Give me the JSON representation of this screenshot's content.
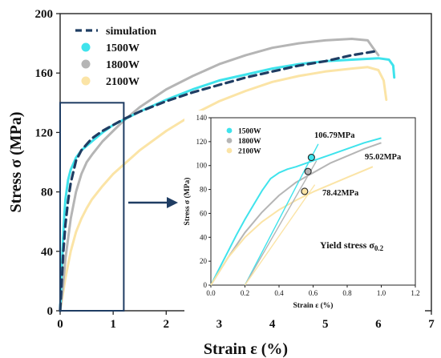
{
  "chart_data": [
    {
      "type": "line",
      "title": "",
      "xlabel": "Strain ε (%)",
      "ylabel": "Stress σ (MPa)",
      "xlim": [
        0,
        7
      ],
      "ylim": [
        0,
        200
      ],
      "xticks": [
        0,
        1,
        2,
        3,
        4,
        5,
        6,
        7
      ],
      "yticks": [
        0,
        40,
        80,
        120,
        160,
        200
      ],
      "grid": false,
      "legend_position": "top-left",
      "series": [
        {
          "name": "simulation",
          "color": "#1f3d63",
          "style": "dashed",
          "x": [
            0,
            0.03,
            0.06,
            0.1,
            0.15,
            0.2,
            0.3,
            0.4,
            0.5,
            0.6,
            0.8,
            1.0,
            1.2,
            1.5,
            2.0,
            2.5,
            3.0,
            3.5,
            4.0,
            4.5,
            5.0,
            5.5,
            6.0
          ],
          "y": [
            0,
            20,
            40,
            58,
            74,
            86,
            101,
            108,
            112,
            116,
            121,
            125,
            129,
            134,
            141,
            147,
            152,
            157,
            161,
            165,
            168,
            172,
            175
          ]
        },
        {
          "name": "1500W",
          "color": "#3fe3ec",
          "style": "solid",
          "x": [
            0,
            0.02,
            0.05,
            0.08,
            0.1,
            0.15,
            0.2,
            0.3,
            0.4,
            0.5,
            0.6,
            0.8,
            1.0,
            1.5,
            2.0,
            2.5,
            3.0,
            3.5,
            4.0,
            4.5,
            5.0,
            5.5,
            6.0,
            6.2,
            6.28,
            6.3
          ],
          "y": [
            0,
            20,
            45,
            65,
            75,
            88,
            95,
            103,
            108,
            111,
            114,
            120,
            125,
            134,
            142,
            149,
            155,
            159,
            163,
            166,
            168,
            169,
            170,
            169,
            165,
            157
          ]
        },
        {
          "name": "1800W",
          "color": "#b5b5b5",
          "style": "solid",
          "x": [
            0,
            0.05,
            0.1,
            0.2,
            0.3,
            0.4,
            0.5,
            0.6,
            0.8,
            1.0,
            1.2,
            1.5,
            2.0,
            2.5,
            3.0,
            3.5,
            4.0,
            4.5,
            5.0,
            5.5,
            5.8,
            5.9,
            6.0
          ],
          "y": [
            0,
            15,
            35,
            62,
            80,
            92,
            100,
            105,
            114,
            121,
            128,
            137,
            149,
            158,
            166,
            172,
            177,
            180,
            182,
            183,
            182,
            177,
            172
          ]
        },
        {
          "name": "2100W",
          "color": "#fbe4a6",
          "style": "solid",
          "x": [
            0,
            0.1,
            0.2,
            0.3,
            0.4,
            0.5,
            0.6,
            0.8,
            1.0,
            1.5,
            2.0,
            2.5,
            3.0,
            3.5,
            4.0,
            4.5,
            5.0,
            5.5,
            5.8,
            6.0,
            6.1,
            6.15
          ],
          "y": [
            0,
            22,
            40,
            53,
            62,
            69,
            75,
            84,
            92,
            108,
            121,
            132,
            141,
            148,
            154,
            158,
            161,
            163,
            164,
            162,
            155,
            142
          ]
        }
      ]
    },
    {
      "type": "line",
      "title": "Yield stress σ0.2",
      "xlabel": "Strain ε (%)",
      "ylabel": "Stress σ (MPa)",
      "xlim": [
        0,
        1.2
      ],
      "ylim": [
        0,
        140
      ],
      "xticks": [
        0.0,
        0.2,
        0.4,
        0.6,
        0.8,
        1.0,
        1.2
      ],
      "yticks": [
        0,
        20,
        40,
        60,
        80,
        100,
        120,
        140
      ],
      "grid": false,
      "legend_position": "top-left",
      "series": [
        {
          "name": "1500W",
          "color": "#3fe3ec",
          "x": [
            0,
            0.05,
            0.1,
            0.15,
            0.2,
            0.25,
            0.3,
            0.35,
            0.4,
            0.45,
            0.5,
            0.6,
            0.7,
            0.8,
            0.9,
            1.0
          ],
          "y": [
            0,
            14,
            28,
            42,
            55,
            67,
            79,
            89,
            94,
            97,
            99,
            104,
            109,
            114,
            119,
            123
          ]
        },
        {
          "name": "1800W",
          "color": "#b5b5b5",
          "x": [
            0,
            0.1,
            0.2,
            0.3,
            0.4,
            0.5,
            0.6,
            0.7,
            0.8,
            0.9,
            1.0
          ],
          "y": [
            0,
            23,
            44,
            61,
            75,
            86,
            94,
            102,
            108,
            114,
            119
          ]
        },
        {
          "name": "2100W",
          "color": "#fbe4a6",
          "x": [
            0,
            0.1,
            0.2,
            0.3,
            0.4,
            0.5,
            0.6,
            0.7,
            0.8,
            0.9,
            0.95
          ],
          "y": [
            0,
            23,
            40,
            53,
            63,
            71,
            78,
            84,
            90,
            96,
            99
          ]
        },
        {
          "name": "1500W offset",
          "color": "#3fe3ec",
          "x": [
            0.2,
            0.63
          ],
          "y": [
            0,
            118
          ]
        },
        {
          "name": "1800W offset",
          "color": "#b5b5b5",
          "x": [
            0.2,
            0.62
          ],
          "y": [
            0,
            104
          ]
        },
        {
          "name": "2100W offset",
          "color": "#fbe4a6",
          "x": [
            0.2,
            0.61
          ],
          "y": [
            0,
            84
          ]
        }
      ],
      "yield_points": [
        {
          "x": 0.59,
          "y": 106.79,
          "label": "106.79MPa"
        },
        {
          "x": 0.57,
          "y": 95.02,
          "label": "95.02MPa"
        },
        {
          "x": 0.55,
          "y": 78.42,
          "label": "78.42MPa"
        }
      ]
    }
  ]
}
